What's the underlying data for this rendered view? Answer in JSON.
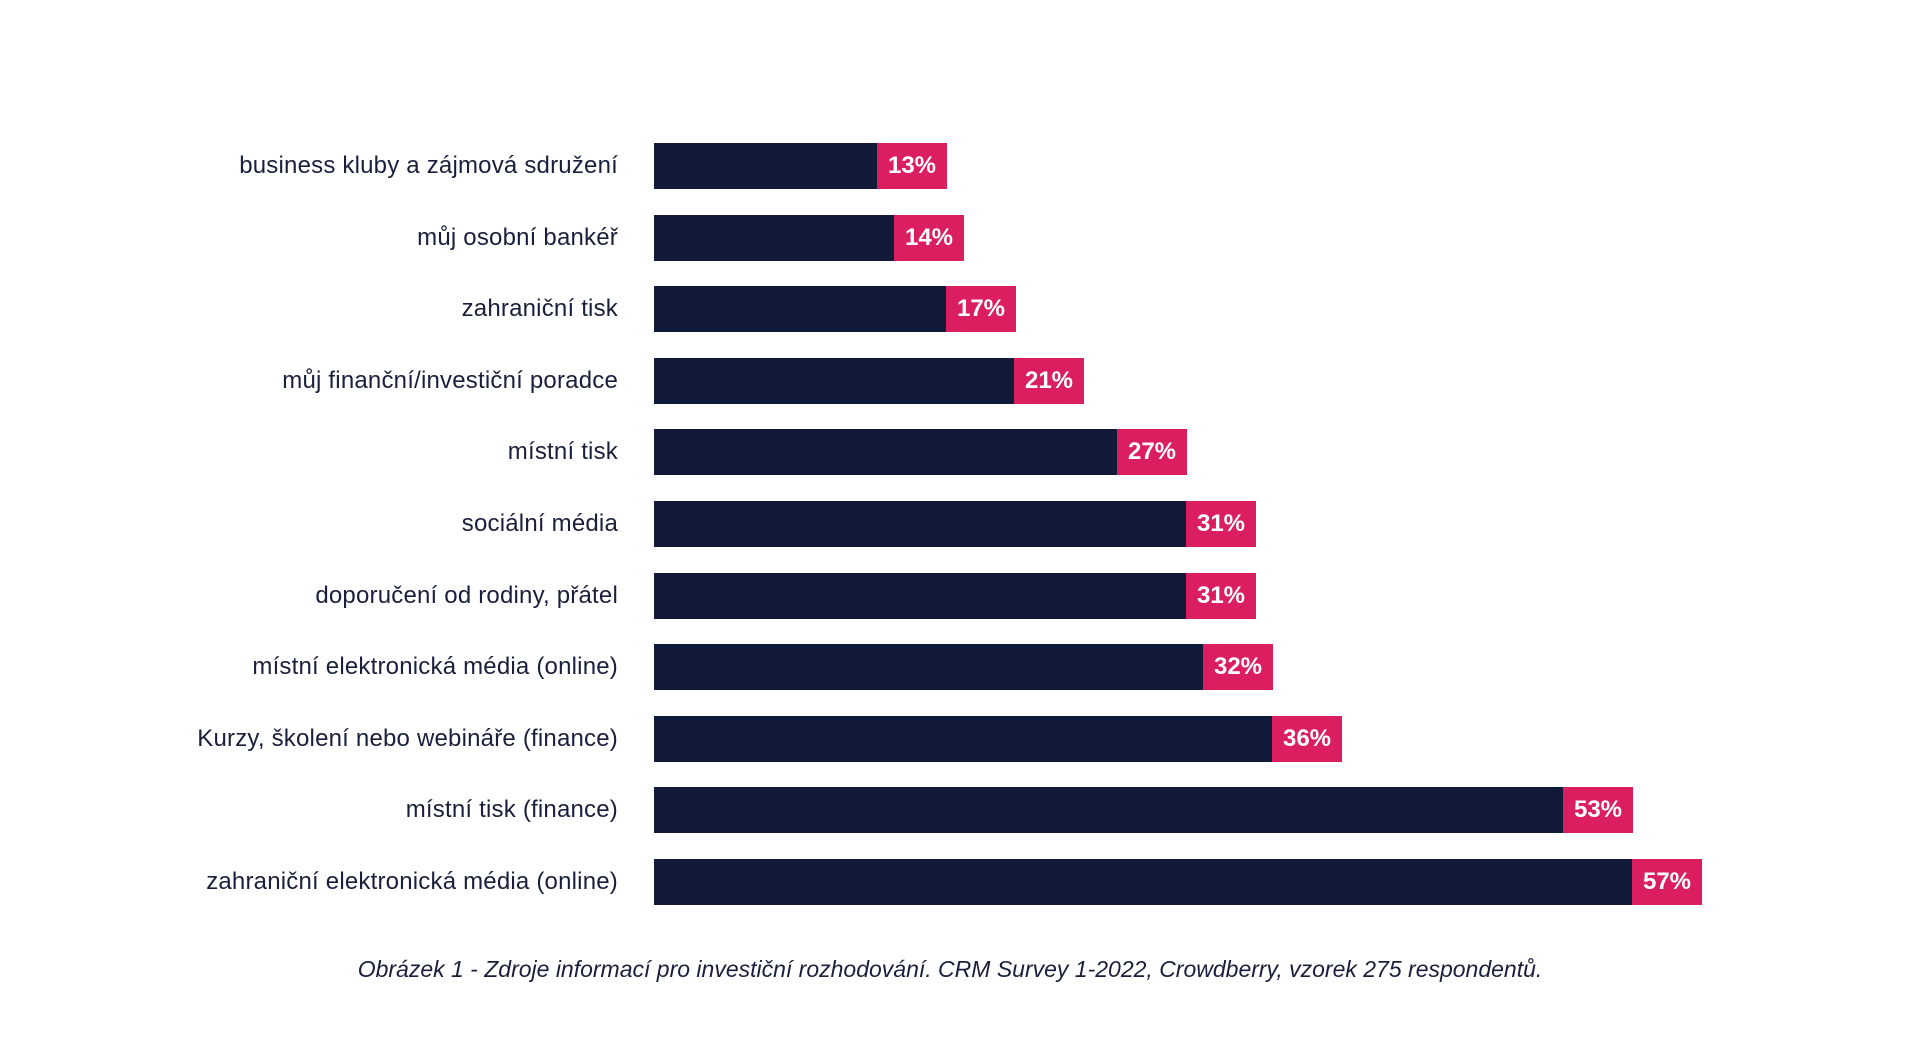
{
  "page": {
    "background_color": "#ffffff"
  },
  "chart_data": {
    "type": "bar",
    "orientation": "horizontal",
    "title": "",
    "xlabel": "",
    "ylabel": "",
    "xlim": [
      0,
      57
    ],
    "grid": false,
    "legend": false,
    "categories": [
      "business kluby a zájmová sdružení",
      "můj osobní bankéř",
      "zahraniční tisk",
      "můj finanční/investiční poradce",
      "místní tisk",
      "sociální média",
      "doporučení od rodiny, přátel",
      "místní elektronická média (online)",
      "Kurzy, školení nebo webináře (finance)",
      "místní tisk (finance)",
      "zahraniční elektronická média (online)"
    ],
    "values": [
      13,
      14,
      17,
      21,
      27,
      31,
      31,
      32,
      36,
      53,
      57
    ],
    "value_labels": [
      "13%",
      "14%",
      "17%",
      "21%",
      "27%",
      "31%",
      "31%",
      "32%",
      "36%",
      "53%",
      "57%"
    ],
    "bar_color": "#111a38",
    "badge_color": "#db1e5f",
    "badge_text_color": "#ffffff",
    "label_color": "#1a1f3c",
    "caption": "Obrázek 1 - Zdroje informací pro investiční rozhodování. CRM Survey 1-2022, Crowdberry, vzorek 275 respondentů."
  }
}
